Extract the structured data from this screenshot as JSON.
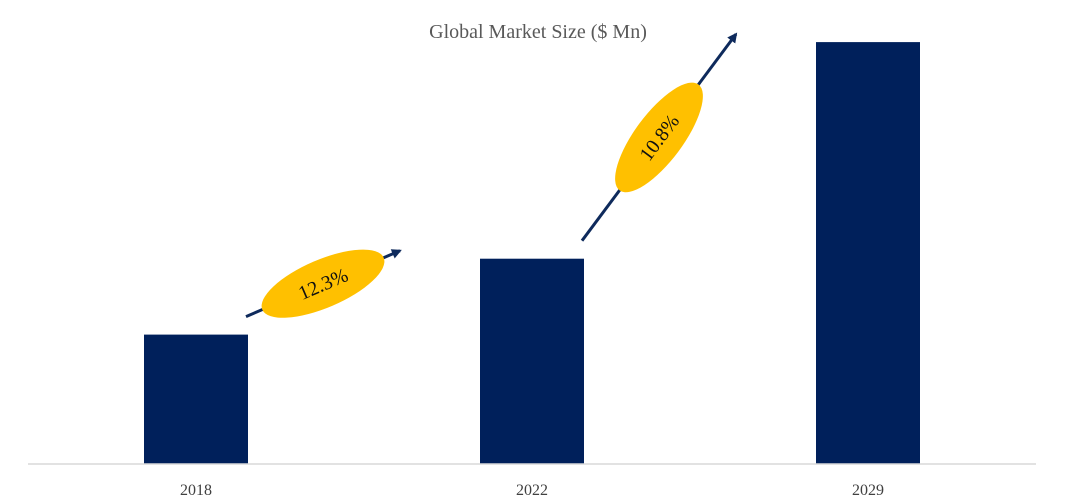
{
  "chart_data": {
    "type": "bar",
    "title": "Global Market Size ($ Mn)",
    "xlabel": "",
    "ylabel": "",
    "categories": [
      "2018",
      "2022",
      "2029"
    ],
    "values": [
      23,
      36.5,
      75
    ],
    "ylim": [
      0,
      80
    ],
    "grid": false,
    "legend": "none",
    "colors": {
      "bar": "#00205B",
      "growth_badge": "#FFC000",
      "arrow": "#0E2A5C",
      "axis": "#D9D9D9"
    },
    "annotations": [
      {
        "label": "12.3%",
        "from": "2018",
        "to": "2022"
      },
      {
        "label": "10.8%",
        "from": "2022",
        "to": "2029"
      }
    ]
  }
}
